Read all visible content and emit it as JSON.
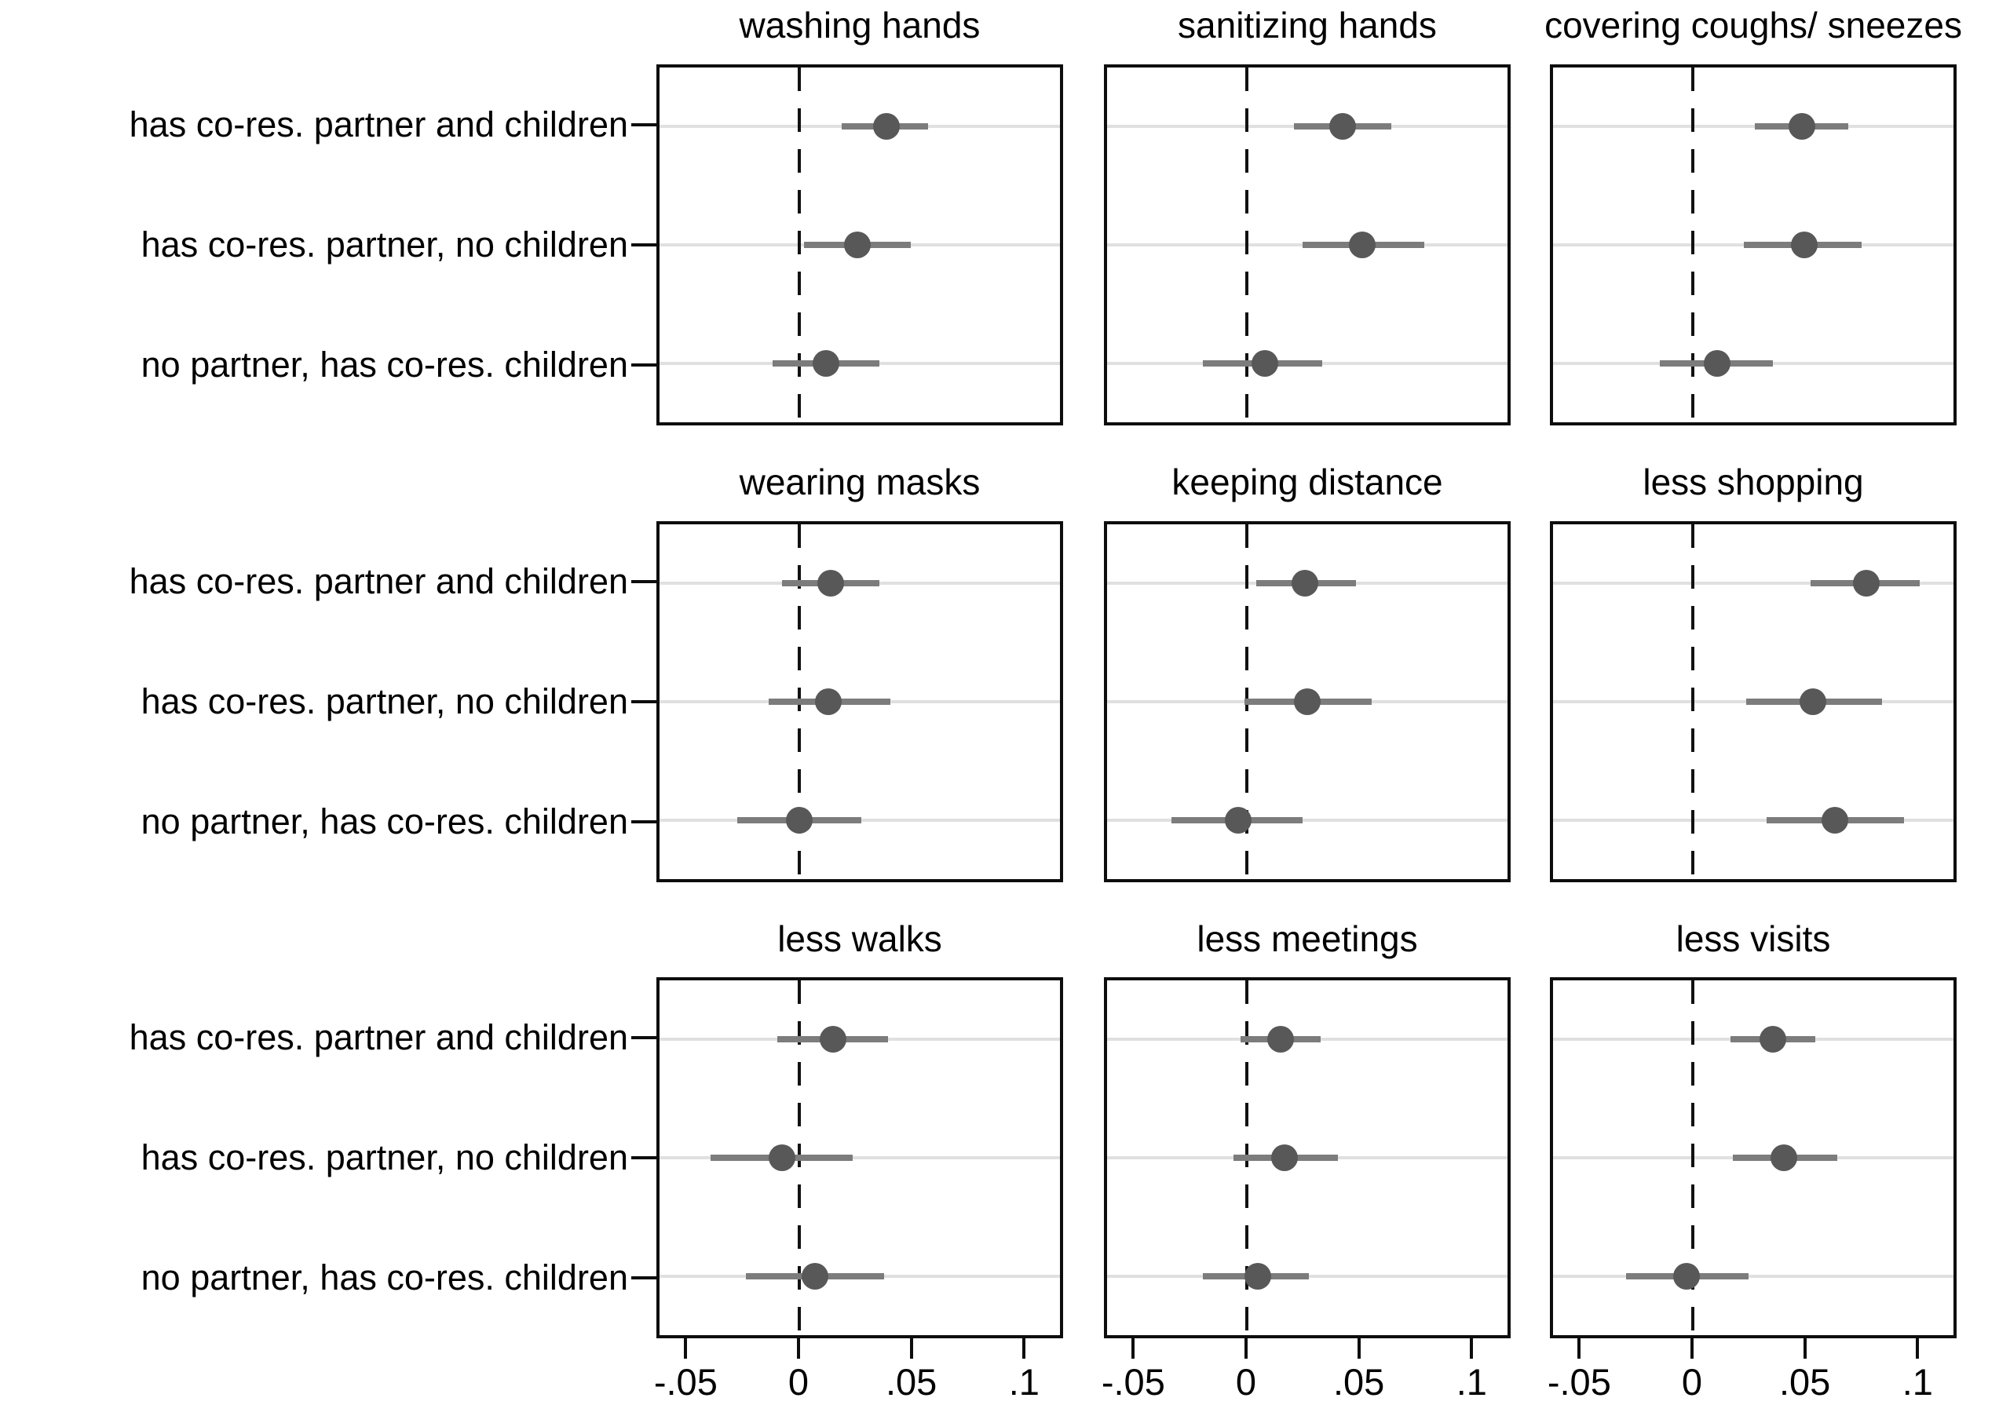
{
  "figure": {
    "background": "#ffffff",
    "colors": {
      "marker": "#585858",
      "ci_line": "#7c7c7c",
      "gridline": "#e0e0e0",
      "panel_border": "#0d0d0d",
      "zero_line": "#111111",
      "text": "#000000"
    },
    "x_tick_labels": [
      "-.05",
      "0",
      ".05",
      ".1"
    ]
  },
  "chart_data": {
    "type": "scatter",
    "subtype": "dot-and-whisker coefficient plot, 3x3 small multiples",
    "grid": "horizontal gridlines per category row",
    "legend_position": "none",
    "zero_reference_line": 0,
    "xlim": [
      -0.063,
      0.1173
    ],
    "x_ticks": [
      -0.05,
      0,
      0.05,
      0.1
    ],
    "x_tick_labels": [
      "-.05",
      "0",
      ".05",
      ".1"
    ],
    "categories": [
      "has co-res. partner and children",
      "has co-res. partner, no children",
      "no partner, has co-res. children"
    ],
    "panels": [
      {
        "title": "washing hands",
        "estimates": [
          0.039,
          0.026,
          0.012
        ],
        "ci_low": [
          0.019,
          0.002,
          -0.012
        ],
        "ci_high": [
          0.058,
          0.05,
          0.036
        ]
      },
      {
        "title": "sanitizing hands",
        "estimates": [
          0.043,
          0.052,
          0.008
        ],
        "ci_low": [
          0.021,
          0.025,
          -0.02
        ],
        "ci_high": [
          0.065,
          0.08,
          0.034
        ]
      },
      {
        "title": "covering coughs/ sneezes",
        "estimates": [
          0.049,
          0.05,
          0.011
        ],
        "ci_low": [
          0.028,
          0.023,
          -0.015
        ],
        "ci_high": [
          0.07,
          0.076,
          0.036
        ]
      },
      {
        "title": "wearing masks",
        "estimates": [
          0.014,
          0.013,
          0.0
        ],
        "ci_low": [
          -0.008,
          -0.014,
          -0.028
        ],
        "ci_high": [
          0.036,
          0.041,
          0.028
        ]
      },
      {
        "title": "keeping distance",
        "estimates": [
          0.026,
          0.027,
          -0.004
        ],
        "ci_low": [
          0.004,
          -0.001,
          -0.034
        ],
        "ci_high": [
          0.049,
          0.056,
          0.025
        ]
      },
      {
        "title": "less shopping",
        "estimates": [
          0.078,
          0.054,
          0.064
        ],
        "ci_low": [
          0.053,
          0.024,
          0.033
        ],
        "ci_high": [
          0.102,
          0.085,
          0.095
        ]
      },
      {
        "title": "less walks",
        "estimates": [
          0.015,
          -0.008,
          0.007
        ],
        "ci_low": [
          -0.01,
          -0.04,
          -0.024
        ],
        "ci_high": [
          0.04,
          0.024,
          0.038
        ]
      },
      {
        "title": "less meetings",
        "estimates": [
          0.015,
          0.017,
          0.005
        ],
        "ci_low": [
          -0.003,
          -0.006,
          -0.02
        ],
        "ci_high": [
          0.033,
          0.041,
          0.028
        ]
      },
      {
        "title": "less visits",
        "estimates": [
          0.036,
          0.041,
          -0.003
        ],
        "ci_low": [
          0.017,
          0.018,
          -0.03
        ],
        "ci_high": [
          0.055,
          0.065,
          0.025
        ]
      }
    ]
  }
}
